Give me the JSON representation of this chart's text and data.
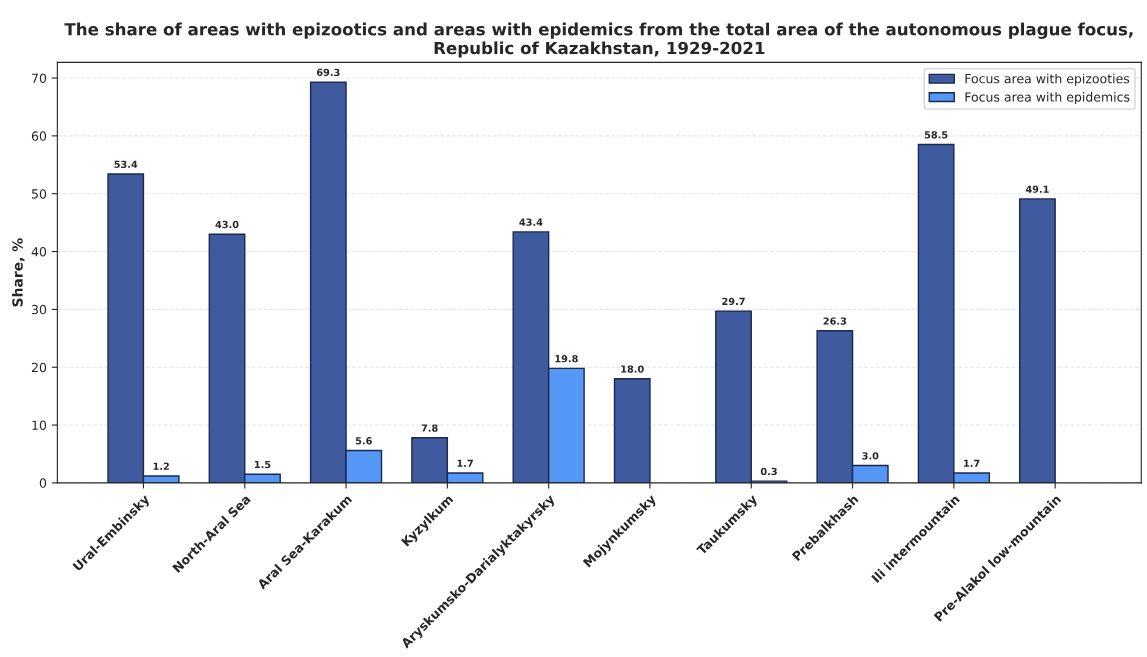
{
  "chart_data": {
    "type": "bar",
    "title": "The share of areas with epizootics and areas with epidemics from the total area of the autonomous plague focus,\nRepublic of Kazakhstan, 1929-2021",
    "ylabel": "Share, %",
    "categories": [
      "Ural-Embinsky",
      "North-Aral Sea",
      "Aral Sea-Karakum",
      "Kyzylkum",
      "Aryskumsko-Darialyktakyrsky",
      "Mojynkumsky",
      "Taukumsky",
      "Prebalkhash",
      "Ili intermountain",
      "Pre-Alakol low-mountain"
    ],
    "series": [
      {
        "name": "Focus area with epizooties",
        "color": "#3f5a9e",
        "values": [
          53.4,
          43.0,
          69.3,
          7.8,
          43.4,
          18.0,
          29.7,
          26.3,
          58.5,
          49.1
        ],
        "value_labels": [
          "53.4",
          "43.0",
          "69.3",
          "7.8",
          "43.4",
          "18.0",
          "29.7",
          "26.3",
          "58.5",
          "49.1"
        ]
      },
      {
        "name": "Focus area with epidemics",
        "color": "#5597f5",
        "values": [
          1.2,
          1.5,
          5.6,
          1.7,
          19.8,
          null,
          0.3,
          3.0,
          1.7,
          null
        ],
        "value_labels": [
          "1.2",
          "1.5",
          "5.6",
          "1.7",
          "19.8",
          null,
          "0.3",
          "3.0",
          "1.7",
          null
        ]
      }
    ],
    "ylim": [
      0,
      72.7
    ],
    "yticks": [
      0,
      10,
      20,
      30,
      40,
      50,
      60,
      70
    ],
    "grid": "y",
    "legend": "top right"
  }
}
